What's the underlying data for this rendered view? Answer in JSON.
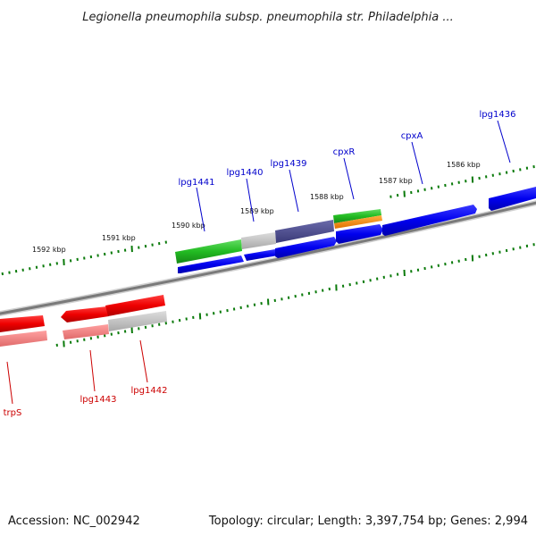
{
  "title": "Legionella pneumophila subsp. pneumophila str. Philadelphia ...",
  "footer": {
    "accession": "Accession: NC_002942",
    "summary": "Topology: circular; Length: 3,397,754 bp; Genes: 2,994"
  },
  "ruler_labels": [
    "1592 kbp",
    "1591 kbp",
    "1590 kbp",
    "1589 kbp",
    "1588 kbp",
    "1587 kbp",
    "1586 kbp"
  ],
  "gene_labels": {
    "top": [
      "lpg1441",
      "lpg1440",
      "lpg1439",
      "cpxR",
      "cpxA",
      "lpg1436"
    ],
    "bottom": [
      "trpS",
      "lpg1443",
      "lpg1442"
    ]
  },
  "colors": {
    "forward_strand": "#0000ee",
    "reverse_strand": "#ee0000",
    "backbone": "#888888",
    "ruler_ticks": "#0a7a0a"
  }
}
